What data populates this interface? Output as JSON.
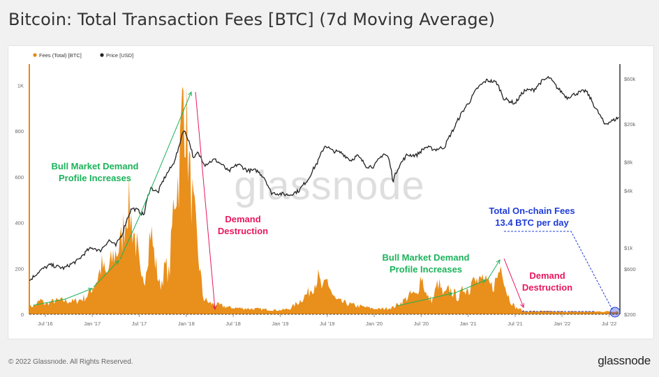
{
  "title": "Bitcoin: Total Transaction Fees [BTC] (7d Moving Average)",
  "footer": {
    "copyright": "© 2022 Glassnode. All Rights Reserved.",
    "brand": "glassnode"
  },
  "watermark": "glassnode",
  "colors": {
    "fees": "#e8890f",
    "price": "#222222",
    "green": "#1bb35a",
    "red": "#e8175d",
    "blue": "#1f3cd8"
  },
  "chart_data": {
    "type": "area",
    "title": "Bitcoin: Total Transaction Fees [BTC] (7d Moving Average)",
    "legend": [
      {
        "name": "Fees (Total) [BTC]",
        "color": "#e8890f"
      },
      {
        "name": "Price [USD]",
        "color": "#222222"
      }
    ],
    "x_ticks": [
      "Jul '16",
      "Jan '17",
      "Jul '17",
      "Jan '18",
      "Jul '18",
      "Jan '19",
      "Jul '19",
      "Jan '20",
      "Jul '20",
      "Jan '21",
      "Jul '21",
      "Jan '22",
      "Jul '22"
    ],
    "y_left_ticks": [
      0,
      200,
      400,
      600,
      800,
      1000
    ],
    "y_left_labels": [
      "0",
      "200",
      "400",
      "600",
      "800",
      "1K"
    ],
    "y_left_range": [
      0,
      1080
    ],
    "y_right_ticks": [
      200,
      600,
      1000,
      4000,
      8000,
      20000,
      60000
    ],
    "y_right_labels": [
      "$200",
      "$600",
      "$1k",
      "$4k",
      "$8k",
      "$20k",
      "$60k"
    ],
    "y_right_range_log": [
      200,
      80000
    ],
    "time_range": [
      2016.33,
      2022.6
    ],
    "series": [
      {
        "name": "Fees (Total) [BTC]",
        "axis": "left",
        "points": [
          [
            2016.33,
            32
          ],
          [
            2016.4,
            42
          ],
          [
            2016.45,
            62
          ],
          [
            2016.5,
            45
          ],
          [
            2016.6,
            58
          ],
          [
            2016.7,
            60
          ],
          [
            2016.8,
            55
          ],
          [
            2016.9,
            68
          ],
          [
            2016.96,
            85
          ],
          [
            2017.0,
            118
          ],
          [
            2017.05,
            150
          ],
          [
            2017.1,
            215
          ],
          [
            2017.15,
            168
          ],
          [
            2017.22,
            250
          ],
          [
            2017.3,
            300
          ],
          [
            2017.38,
            495
          ],
          [
            2017.42,
            400
          ],
          [
            2017.48,
            280
          ],
          [
            2017.52,
            130
          ],
          [
            2017.56,
            170
          ],
          [
            2017.62,
            380
          ],
          [
            2017.66,
            250
          ],
          [
            2017.72,
            120
          ],
          [
            2017.78,
            210
          ],
          [
            2017.82,
            165
          ],
          [
            2017.87,
            520
          ],
          [
            2017.92,
            600
          ],
          [
            2017.97,
            980
          ],
          [
            2018.0,
            850
          ],
          [
            2018.04,
            580
          ],
          [
            2018.08,
            440
          ],
          [
            2018.13,
            250
          ],
          [
            2018.18,
            70
          ],
          [
            2018.25,
            48
          ],
          [
            2018.35,
            40
          ],
          [
            2018.45,
            30
          ],
          [
            2018.6,
            26
          ],
          [
            2018.8,
            22
          ],
          [
            2019.0,
            18
          ],
          [
            2019.1,
            24
          ],
          [
            2019.2,
            55
          ],
          [
            2019.3,
            95
          ],
          [
            2019.36,
            130
          ],
          [
            2019.4,
            165
          ],
          [
            2019.45,
            105
          ],
          [
            2019.5,
            150
          ],
          [
            2019.56,
            80
          ],
          [
            2019.6,
            60
          ],
          [
            2019.7,
            48
          ],
          [
            2019.8,
            38
          ],
          [
            2019.95,
            28
          ],
          [
            2020.05,
            22
          ],
          [
            2020.2,
            30
          ],
          [
            2020.3,
            55
          ],
          [
            2020.4,
            90
          ],
          [
            2020.45,
            80
          ],
          [
            2020.5,
            175
          ],
          [
            2020.56,
            75
          ],
          [
            2020.62,
            60
          ],
          [
            2020.68,
            140
          ],
          [
            2020.74,
            80
          ],
          [
            2020.8,
            110
          ],
          [
            2020.84,
            95
          ],
          [
            2020.9,
            70
          ],
          [
            2020.96,
            120
          ],
          [
            2021.02,
            100
          ],
          [
            2021.06,
            230
          ],
          [
            2021.1,
            130
          ],
          [
            2021.15,
            160
          ],
          [
            2021.2,
            130
          ],
          [
            2021.26,
            120
          ],
          [
            2021.3,
            150
          ],
          [
            2021.36,
            230
          ],
          [
            2021.4,
            110
          ],
          [
            2021.45,
            60
          ],
          [
            2021.5,
            30
          ],
          [
            2021.6,
            14
          ],
          [
            2021.8,
            13
          ],
          [
            2022.0,
            12
          ],
          [
            2022.2,
            11
          ],
          [
            2022.4,
            12
          ],
          [
            2022.6,
            13
          ]
        ]
      },
      {
        "name": "Price [USD]",
        "axis": "right",
        "points": [
          [
            2016.33,
            450
          ],
          [
            2016.45,
            580
          ],
          [
            2016.55,
            660
          ],
          [
            2016.7,
            610
          ],
          [
            2016.85,
            740
          ],
          [
            2016.96,
            960
          ],
          [
            2017.02,
            1000
          ],
          [
            2017.08,
            920
          ],
          [
            2017.18,
            1200
          ],
          [
            2017.25,
            1050
          ],
          [
            2017.32,
            1400
          ],
          [
            2017.42,
            2600
          ],
          [
            2017.48,
            2500
          ],
          [
            2017.55,
            2200
          ],
          [
            2017.62,
            4300
          ],
          [
            2017.7,
            3800
          ],
          [
            2017.78,
            5700
          ],
          [
            2017.86,
            7500
          ],
          [
            2017.92,
            11000
          ],
          [
            2017.97,
            17500
          ],
          [
            2018.02,
            14000
          ],
          [
            2018.08,
            8500
          ],
          [
            2018.12,
            10000
          ],
          [
            2018.2,
            7500
          ],
          [
            2018.3,
            8500
          ],
          [
            2018.38,
            7500
          ],
          [
            2018.45,
            6300
          ],
          [
            2018.55,
            7600
          ],
          [
            2018.65,
            6500
          ],
          [
            2018.75,
            6500
          ],
          [
            2018.83,
            5500
          ],
          [
            2018.9,
            3800
          ],
          [
            2019.0,
            3700
          ],
          [
            2019.1,
            3600
          ],
          [
            2019.2,
            4000
          ],
          [
            2019.3,
            5300
          ],
          [
            2019.4,
            8000
          ],
          [
            2019.48,
            12000
          ],
          [
            2019.55,
            10500
          ],
          [
            2019.65,
            10000
          ],
          [
            2019.75,
            8300
          ],
          [
            2019.82,
            9300
          ],
          [
            2019.92,
            7200
          ],
          [
            2020.0,
            7200
          ],
          [
            2020.1,
            9800
          ],
          [
            2020.15,
            9000
          ],
          [
            2020.2,
            5000
          ],
          [
            2020.25,
            6800
          ],
          [
            2020.35,
            9500
          ],
          [
            2020.45,
            9400
          ],
          [
            2020.55,
            11500
          ],
          [
            2020.65,
            10800
          ],
          [
            2020.75,
            11500
          ],
          [
            2020.85,
            18000
          ],
          [
            2020.95,
            28000
          ],
          [
            2021.02,
            35000
          ],
          [
            2021.1,
            48000
          ],
          [
            2021.2,
            58000
          ],
          [
            2021.3,
            55000
          ],
          [
            2021.38,
            37000
          ],
          [
            2021.5,
            33000
          ],
          [
            2021.6,
            45000
          ],
          [
            2021.7,
            46000
          ],
          [
            2021.78,
            56000
          ],
          [
            2021.86,
            62000
          ],
          [
            2021.95,
            48000
          ],
          [
            2022.05,
            38000
          ],
          [
            2022.15,
            42000
          ],
          [
            2022.25,
            45000
          ],
          [
            2022.35,
            30000
          ],
          [
            2022.45,
            20000
          ],
          [
            2022.55,
            22000
          ],
          [
            2022.6,
            23500
          ]
        ]
      }
    ],
    "annotations": [
      {
        "text": [
          "Bull Market Demand",
          "Profile Increases"
        ],
        "color": "green"
      },
      {
        "text": [
          "Demand",
          "Destruction"
        ],
        "color": "red"
      },
      {
        "text": [
          "Bull Market Demand",
          "Profile Increases"
        ],
        "color": "green"
      },
      {
        "text": [
          "Demand",
          "Destruction"
        ],
        "color": "red"
      },
      {
        "text": [
          "Total On-chain Fees",
          "13.4 BTC per day"
        ],
        "color": "blue"
      }
    ]
  }
}
